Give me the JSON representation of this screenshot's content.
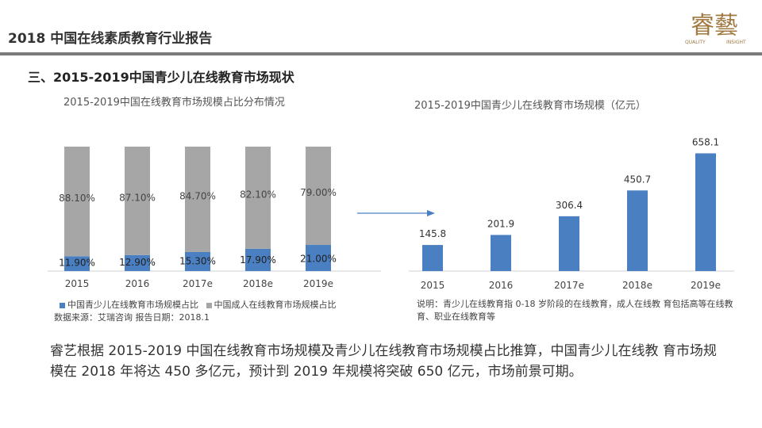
{
  "header": {
    "title": "2018 中国在线素质教育行业报告"
  },
  "logo": {
    "text": "睿藝",
    "subtext_left": "QUALITY",
    "subtext_right": "INSIGHT"
  },
  "section_title": "三、2015-2019中国青少儿在线教育市场现状",
  "chart_data": [
    {
      "type": "bar",
      "stacked": true,
      "title": "2015-2019中国在线教育市场规模占比分布情况",
      "categories": [
        "2015",
        "2016",
        "2017e",
        "2018e",
        "2019e"
      ],
      "series": [
        {
          "name": "中国青少儿在线教育市场规模占比",
          "color": "#4a7fc1",
          "values": [
            11.9,
            12.9,
            15.3,
            17.9,
            21.0
          ],
          "labels": [
            "11.90%",
            "12.90%",
            "15.30%",
            "17.90%",
            "21.00%"
          ]
        },
        {
          "name": "中国成人在线教育市场规模占比",
          "color": "#a6a6a6",
          "values": [
            88.1,
            87.1,
            84.7,
            82.1,
            79.0
          ],
          "labels": [
            "88.10%",
            "87.10%",
            "84.70%",
            "82.10%",
            "79.00%"
          ]
        }
      ],
      "ylim": [
        0,
        100
      ],
      "legend": "bottom"
    },
    {
      "type": "bar",
      "title": "2015-2019中国青少儿在线教育市场规模（亿元）",
      "categories": [
        "2015",
        "2016",
        "2017e",
        "2018e",
        "2019e"
      ],
      "values": [
        145.8,
        201.9,
        306.4,
        450.7,
        658.1
      ],
      "labels": [
        "145.8",
        "201.9",
        "306.4",
        "450.7",
        "658.1"
      ],
      "color": "#4a7fc1",
      "ylim": [
        0,
        700
      ]
    }
  ],
  "source_text": "数据来源：艾瑞咨询 报告日期：2018.1",
  "note_text": "说明：青少儿在线教育指 0-18 岁阶段的在线教育，成人在线教 育包括高等在线教育、职业在线教育等",
  "summary_text": "睿艺根据 2015-2019 中国在线教育市场规模及青少儿在线教育市场规模占比推算，中国青少儿在线教 育市场规模在 2018 年将达 450 多亿元，预计到 2019 年规模将突破 650 亿元，市场前景可期。",
  "colors": {
    "accent_blue": "#4a7fc1",
    "gray_bar": "#a6a6a6",
    "logo_gold": "#a07840",
    "header_line": "#7a7a7a"
  }
}
